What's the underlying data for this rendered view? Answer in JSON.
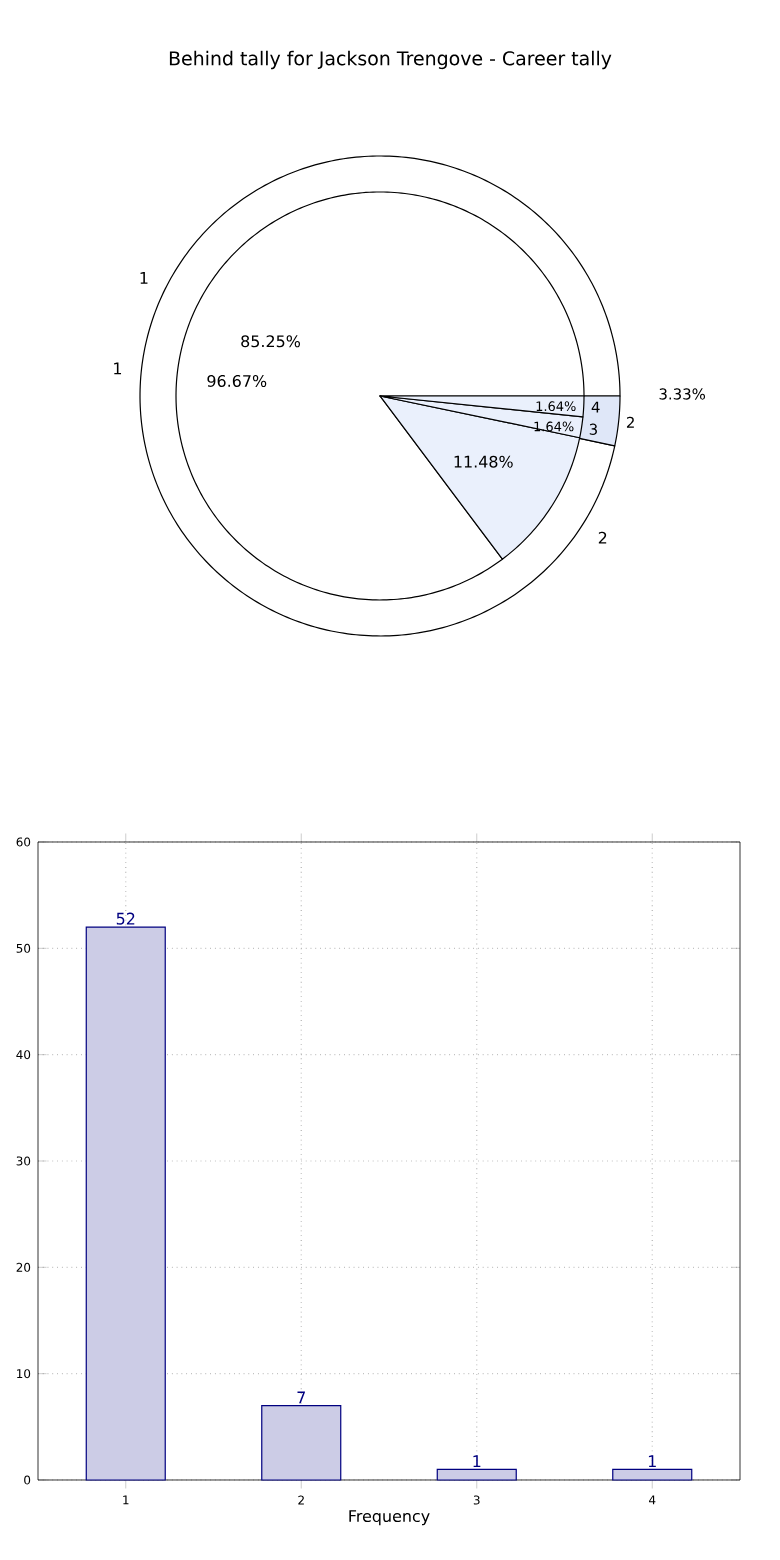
{
  "chart_data": [
    {
      "type": "pie",
      "title": "Behind tally for Jackson Trengove - Career tally",
      "categories": [
        "1",
        "2",
        "3",
        "4"
      ],
      "values": [
        85.25,
        11.48,
        1.64,
        1.64
      ],
      "value_labels": [
        "85.25%",
        "11.48%",
        "1.64%",
        "1.64%"
      ],
      "colors": [
        "#ffffff",
        "#eaf0fc",
        "#eaf0fc",
        "#eaf0fc"
      ]
    },
    {
      "type": "pie",
      "categories": [
        "1",
        "2"
      ],
      "values": [
        96.67,
        3.33
      ],
      "value_labels": [
        "96.67%",
        "3.33%"
      ],
      "colors": [
        "#ffffff",
        "#dfe7f8"
      ]
    },
    {
      "type": "bar",
      "categories": [
        "1",
        "2",
        "3",
        "4"
      ],
      "values": [
        52,
        7,
        1,
        1
      ],
      "color": "#cccce6",
      "xlabel": "Frequency",
      "ylim": [
        0,
        60
      ],
      "yticks": [
        0,
        10,
        20,
        30,
        40,
        50,
        60
      ],
      "grid": true,
      "data_labels": true
    }
  ]
}
